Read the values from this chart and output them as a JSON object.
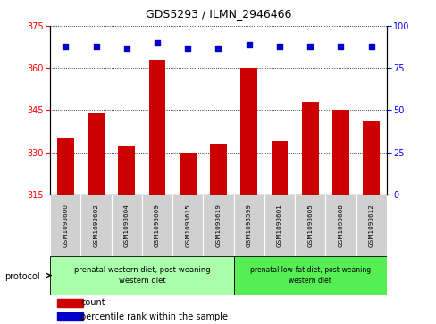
{
  "title": "GDS5293 / ILMN_2946466",
  "samples": [
    "GSM1093600",
    "GSM1093602",
    "GSM1093604",
    "GSM1093609",
    "GSM1093615",
    "GSM1093619",
    "GSM1093599",
    "GSM1093601",
    "GSM1093605",
    "GSM1093608",
    "GSM1093612"
  ],
  "counts": [
    335,
    344,
    332,
    363,
    330,
    333,
    360,
    334,
    348,
    345,
    341
  ],
  "percentile_ranks": [
    88,
    88,
    87,
    90,
    87,
    87,
    89,
    88,
    88,
    88,
    88
  ],
  "ylim_left": [
    315,
    375
  ],
  "ylim_right": [
    0,
    100
  ],
  "yticks_left": [
    315,
    330,
    345,
    360,
    375
  ],
  "yticks_right": [
    0,
    25,
    50,
    75,
    100
  ],
  "bar_color": "#cc0000",
  "dot_color": "#0000cc",
  "group1_label": "prenatal western diet, post-weaning\nwestern diet",
  "group2_label": "prenatal low-fat diet, post-weaning\nwestern diet",
  "group1_indices": [
    0,
    1,
    2,
    3,
    4,
    5
  ],
  "group2_indices": [
    6,
    7,
    8,
    9,
    10
  ],
  "group1_color": "#aaffaa",
  "group2_color": "#55ee55",
  "protocol_label": "protocol",
  "legend_count_label": "count",
  "legend_percentile_label": "percentile rank within the sample",
  "sample_box_color": "#d0d0d0",
  "title_fontsize": 9,
  "tick_fontsize": 7,
  "label_fontsize": 6,
  "legend_fontsize": 7
}
